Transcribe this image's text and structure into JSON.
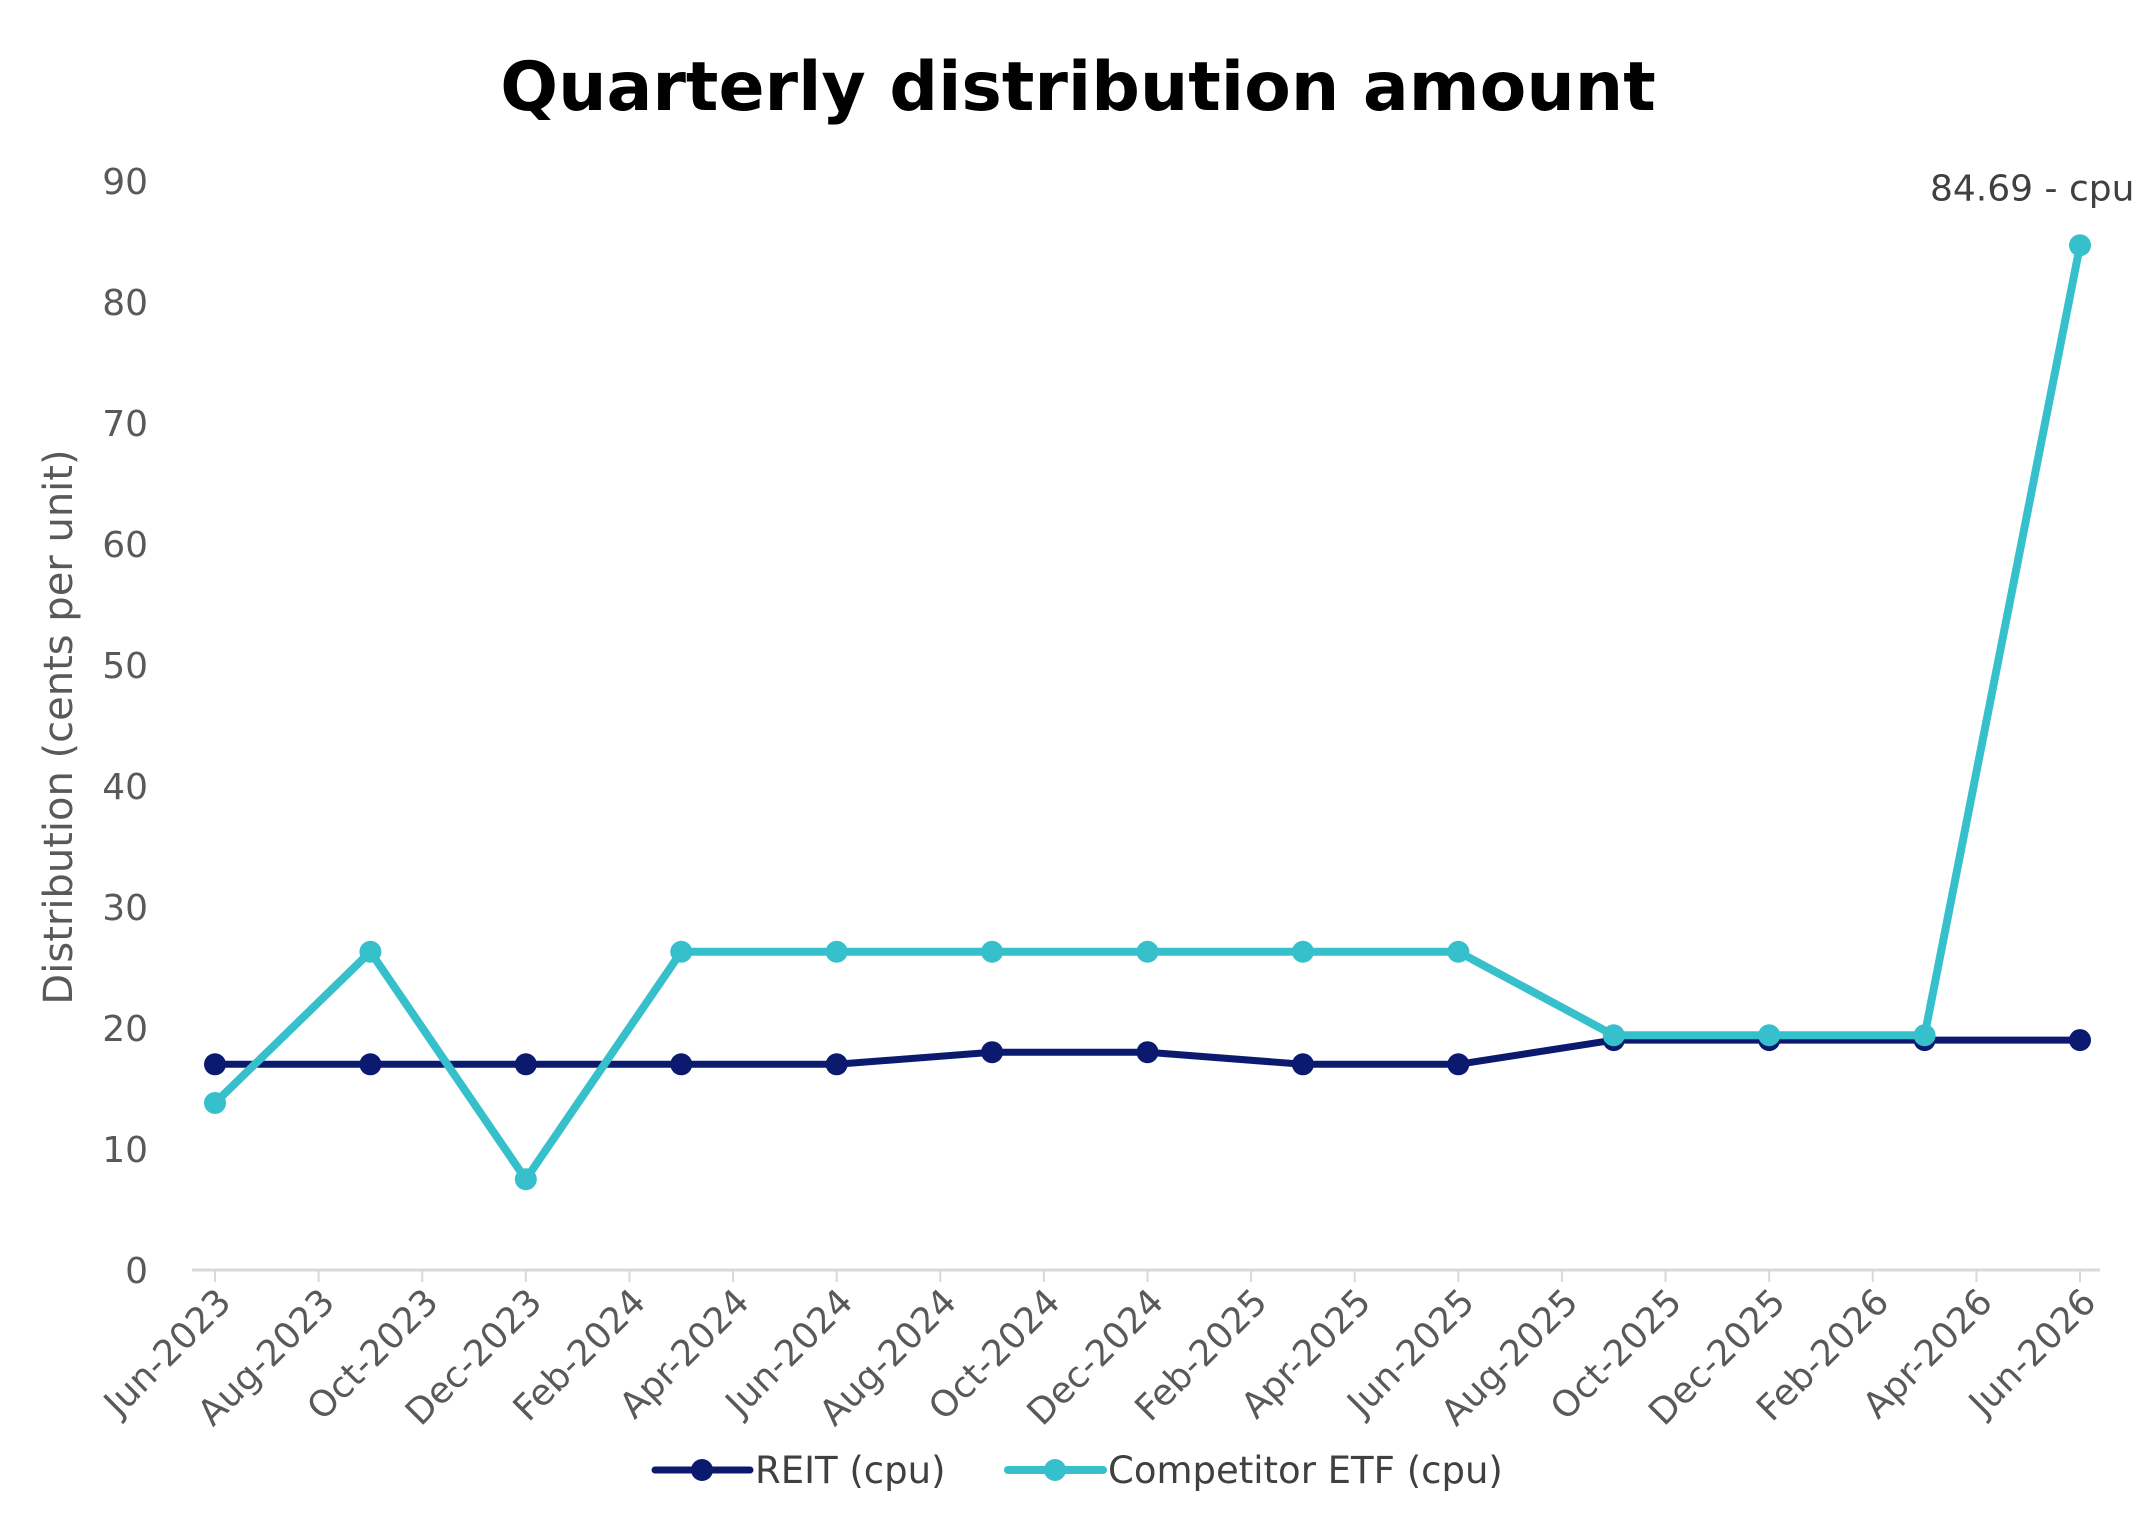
{
  "chart_data": {
    "type": "line",
    "title": "Quarterly distribution amount",
    "ylabel": "Distribution (cents per unit)",
    "xlabel": "",
    "ylim": [
      0,
      90
    ],
    "yticks": [
      0,
      10,
      20,
      30,
      40,
      50,
      60,
      70,
      80,
      90
    ],
    "categories": [
      "Jun-2023",
      "Aug-2023",
      "Oct-2023",
      "Dec-2023",
      "Feb-2024",
      "Apr-2024",
      "Jun-2024",
      "Aug-2024",
      "Oct-2024",
      "Dec-2024",
      "Feb-2025",
      "Apr-2025",
      "Jun-2025",
      "Aug-2025",
      "Oct-2025",
      "Dec-2025",
      "Feb-2026",
      "Apr-2026",
      "Jun-2026"
    ],
    "x_unit": "month",
    "grid": false,
    "legend_position": "bottom",
    "series": [
      {
        "name": "REIT (cpu)",
        "color": "#0b1a6e",
        "points": [
          {
            "x": "Jun-2023",
            "y": 17.0
          },
          {
            "x": "Sep-2023",
            "y": 17.0
          },
          {
            "x": "Dec-2023",
            "y": 17.0
          },
          {
            "x": "Mar-2024",
            "y": 17.0
          },
          {
            "x": "Jun-2024",
            "y": 17.0
          },
          {
            "x": "Sep-2024",
            "y": 18.0
          },
          {
            "x": "Dec-2024",
            "y": 18.0
          },
          {
            "x": "Mar-2025",
            "y": 17.0
          },
          {
            "x": "Jun-2025",
            "y": 17.0
          },
          {
            "x": "Sep-2025",
            "y": 19.0
          },
          {
            "x": "Dec-2025",
            "y": 19.0
          },
          {
            "x": "Mar-2026",
            "y": 19.0
          },
          {
            "x": "Jun-2026",
            "y": 19.0
          }
        ]
      },
      {
        "name": "Competitor ETF (cpu)",
        "color": "#36c0cc",
        "points": [
          {
            "x": "Jun-2023",
            "y": 13.8
          },
          {
            "x": "Sep-2023",
            "y": 26.3
          },
          {
            "x": "Dec-2023",
            "y": 7.5
          },
          {
            "x": "Mar-2024",
            "y": 26.3
          },
          {
            "x": "Jun-2024",
            "y": 26.3
          },
          {
            "x": "Sep-2024",
            "y": 26.3
          },
          {
            "x": "Dec-2024",
            "y": 26.3
          },
          {
            "x": "Mar-2025",
            "y": 26.3
          },
          {
            "x": "Jun-2025",
            "y": 26.3
          },
          {
            "x": "Sep-2025",
            "y": 19.4
          },
          {
            "x": "Dec-2025",
            "y": 19.4
          },
          {
            "x": "Mar-2026",
            "y": 19.4
          },
          {
            "x": "Jun-2026",
            "y": 84.69
          }
        ]
      }
    ],
    "annotations": [
      {
        "series": "Competitor ETF (cpu)",
        "x": "Jun-2026",
        "y": 84.69,
        "text": "84.69 - cpu"
      }
    ]
  }
}
